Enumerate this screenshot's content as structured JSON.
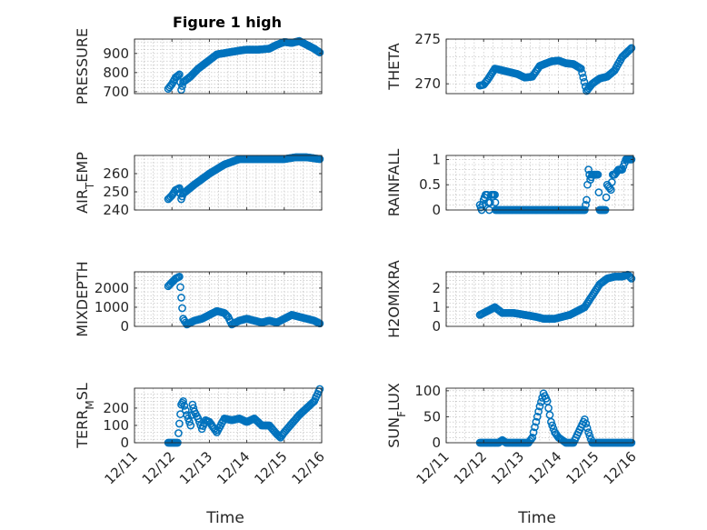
{
  "chart_data": {
    "type": "scatter",
    "title": "Figure 1 high",
    "marker_color": "#0072BD",
    "grid": true,
    "xlabel": "Time",
    "x_ticks": [
      "12/11",
      "12/12",
      "12/13",
      "12/14",
      "12/15",
      "12/16"
    ],
    "xlim": [
      0,
      5
    ],
    "panels": [
      {
        "name": "pressure",
        "ylabel": "PRESSURE",
        "ylim": [
          690,
          975
        ],
        "yticks": [
          700,
          800,
          900
        ],
        "yticklabels": [
          "700",
          "800",
          "900"
        ],
        "knots": [
          [
            0.9,
            715
          ],
          [
            1.0,
            740
          ],
          [
            1.1,
            775
          ],
          [
            1.2,
            790
          ],
          [
            1.25,
            710
          ],
          [
            1.3,
            750
          ],
          [
            1.5,
            780
          ],
          [
            1.7,
            820
          ],
          [
            2.0,
            865
          ],
          [
            2.2,
            895
          ],
          [
            2.5,
            905
          ],
          [
            2.8,
            915
          ],
          [
            3.0,
            920
          ],
          [
            3.3,
            920
          ],
          [
            3.6,
            925
          ],
          [
            3.8,
            945
          ],
          [
            4.0,
            960
          ],
          [
            4.2,
            955
          ],
          [
            4.4,
            965
          ],
          [
            4.6,
            945
          ],
          [
            4.8,
            925
          ],
          [
            4.95,
            905
          ]
        ]
      },
      {
        "name": "theta",
        "ylabel": "THETA",
        "ylim": [
          268.9,
          275
        ],
        "yticks": [
          270,
          275
        ],
        "yticklabels": [
          "270",
          "275"
        ],
        "knots": [
          [
            0.9,
            269.8
          ],
          [
            1.0,
            269.9
          ],
          [
            1.1,
            270.4
          ],
          [
            1.3,
            271.7
          ],
          [
            1.6,
            271.4
          ],
          [
            1.9,
            271.1
          ],
          [
            2.1,
            270.7
          ],
          [
            2.3,
            270.8
          ],
          [
            2.5,
            272.0
          ],
          [
            2.8,
            272.5
          ],
          [
            3.0,
            272.6
          ],
          [
            3.2,
            272.3
          ],
          [
            3.4,
            272.2
          ],
          [
            3.6,
            271.7
          ],
          [
            3.75,
            269.2
          ],
          [
            3.9,
            270.0
          ],
          [
            4.1,
            270.6
          ],
          [
            4.3,
            270.8
          ],
          [
            4.5,
            271.5
          ],
          [
            4.7,
            273.0
          ],
          [
            4.95,
            274.0
          ]
        ]
      },
      {
        "name": "air-temp",
        "ylabel": "AIR_TEMP",
        "ylim": [
          240,
          270
        ],
        "yticks": [
          240,
          250,
          260
        ],
        "yticklabels": [
          "240",
          "250",
          "260"
        ],
        "knots": [
          [
            0.9,
            246
          ],
          [
            1.0,
            248
          ],
          [
            1.1,
            251
          ],
          [
            1.2,
            252
          ],
          [
            1.25,
            246
          ],
          [
            1.3,
            249
          ],
          [
            1.6,
            254
          ],
          [
            2.0,
            260
          ],
          [
            2.4,
            265
          ],
          [
            2.8,
            268
          ],
          [
            3.2,
            268
          ],
          [
            3.6,
            268
          ],
          [
            4.0,
            268
          ],
          [
            4.3,
            269
          ],
          [
            4.6,
            269
          ],
          [
            4.95,
            268
          ]
        ]
      },
      {
        "name": "rainfall",
        "ylabel": "RAINFALL",
        "ylim": [
          0,
          1.08
        ],
        "yticks": [
          0,
          0.5,
          1
        ],
        "yticklabels": [
          "0",
          "0.5",
          "1"
        ],
        "knots": [
          [
            0.9,
            0.1
          ],
          [
            0.95,
            0
          ],
          [
            1.0,
            0.2
          ],
          [
            1.05,
            0.3
          ],
          [
            1.1,
            0.3
          ],
          [
            1.15,
            0
          ],
          [
            1.2,
            0.3
          ],
          [
            1.3,
            0.3
          ],
          [
            1.32,
            0
          ],
          [
            3.7,
            0
          ],
          [
            3.75,
            0.2
          ],
          [
            3.8,
            0.8
          ],
          [
            3.85,
            0.6
          ],
          [
            3.9,
            0.7
          ],
          [
            4.0,
            0.7
          ],
          [
            4.05,
            0.7
          ],
          [
            4.1,
            0
          ],
          [
            4.25,
            0
          ],
          [
            4.3,
            0.5
          ],
          [
            4.4,
            0.4
          ],
          [
            4.45,
            0.7
          ],
          [
            4.5,
            0.7
          ],
          [
            4.6,
            0.8
          ],
          [
            4.7,
            0.8
          ],
          [
            4.8,
            1.0
          ],
          [
            4.95,
            1.0
          ]
        ]
      },
      {
        "name": "mixdepth",
        "ylabel": "MIXDEPTH",
        "ylim": [
          0,
          2850
        ],
        "yticks": [
          0,
          1000,
          2000
        ],
        "yticklabels": [
          "0",
          "1000",
          "2000"
        ],
        "knots": [
          [
            0.9,
            2100
          ],
          [
            1.0,
            2300
          ],
          [
            1.1,
            2500
          ],
          [
            1.2,
            2600
          ],
          [
            1.25,
            1500
          ],
          [
            1.3,
            400
          ],
          [
            1.4,
            100
          ],
          [
            1.6,
            300
          ],
          [
            1.8,
            400
          ],
          [
            2.0,
            600
          ],
          [
            2.2,
            800
          ],
          [
            2.4,
            700
          ],
          [
            2.5,
            500
          ],
          [
            2.6,
            100
          ],
          [
            2.8,
            300
          ],
          [
            3.0,
            400
          ],
          [
            3.2,
            300
          ],
          [
            3.4,
            200
          ],
          [
            3.6,
            300
          ],
          [
            3.8,
            200
          ],
          [
            4.0,
            400
          ],
          [
            4.2,
            600
          ],
          [
            4.4,
            500
          ],
          [
            4.6,
            400
          ],
          [
            4.8,
            300
          ],
          [
            4.95,
            150
          ]
        ]
      },
      {
        "name": "h2omixra",
        "ylabel": "H2OMIXRA",
        "ylim": [
          0,
          2.85
        ],
        "yticks": [
          0,
          1,
          2
        ],
        "yticklabels": [
          "0",
          "1",
          "2"
        ],
        "knots": [
          [
            0.9,
            0.6
          ],
          [
            1.1,
            0.8
          ],
          [
            1.3,
            1.0
          ],
          [
            1.5,
            0.7
          ],
          [
            1.8,
            0.7
          ],
          [
            2.1,
            0.6
          ],
          [
            2.4,
            0.5
          ],
          [
            2.6,
            0.4
          ],
          [
            2.9,
            0.4
          ],
          [
            3.1,
            0.5
          ],
          [
            3.3,
            0.6
          ],
          [
            3.5,
            0.8
          ],
          [
            3.7,
            1.0
          ],
          [
            3.9,
            1.6
          ],
          [
            4.1,
            2.2
          ],
          [
            4.3,
            2.5
          ],
          [
            4.5,
            2.6
          ],
          [
            4.7,
            2.6
          ],
          [
            4.85,
            2.7
          ],
          [
            4.95,
            2.5
          ]
        ]
      },
      {
        "name": "terr-msl",
        "ylabel": "TERR_MSL",
        "ylim": [
          0,
          315
        ],
        "yticks": [
          0,
          100,
          200
        ],
        "yticklabels": [
          "0",
          "100",
          "200"
        ],
        "knots": [
          [
            0.9,
            0
          ],
          [
            1.15,
            0
          ],
          [
            1.2,
            110
          ],
          [
            1.25,
            220
          ],
          [
            1.3,
            240
          ],
          [
            1.4,
            160
          ],
          [
            1.5,
            100
          ],
          [
            1.55,
            220
          ],
          [
            1.6,
            180
          ],
          [
            1.7,
            140
          ],
          [
            1.8,
            80
          ],
          [
            1.9,
            130
          ],
          [
            2.0,
            120
          ],
          [
            2.2,
            60
          ],
          [
            2.4,
            140
          ],
          [
            2.6,
            130
          ],
          [
            2.8,
            140
          ],
          [
            3.0,
            120
          ],
          [
            3.2,
            140
          ],
          [
            3.4,
            100
          ],
          [
            3.6,
            100
          ],
          [
            3.8,
            50
          ],
          [
            3.9,
            30
          ],
          [
            4.0,
            60
          ],
          [
            4.2,
            110
          ],
          [
            4.4,
            160
          ],
          [
            4.6,
            200
          ],
          [
            4.8,
            240
          ],
          [
            4.95,
            310
          ]
        ]
      },
      {
        "name": "sunflux",
        "ylabel": "SUN_FLUX",
        "ylim": [
          0,
          105
        ],
        "yticks": [
          0,
          50,
          100
        ],
        "yticklabels": [
          "0",
          "50",
          "100"
        ],
        "knots": [
          [
            0.9,
            0
          ],
          [
            1.2,
            0
          ],
          [
            1.4,
            0
          ],
          [
            1.5,
            5
          ],
          [
            1.6,
            0
          ],
          [
            2.2,
            0
          ],
          [
            2.3,
            10
          ],
          [
            2.4,
            40
          ],
          [
            2.5,
            70
          ],
          [
            2.6,
            95
          ],
          [
            2.7,
            80
          ],
          [
            2.8,
            40
          ],
          [
            2.9,
            20
          ],
          [
            3.0,
            10
          ],
          [
            3.2,
            0
          ],
          [
            3.4,
            0
          ],
          [
            3.5,
            15
          ],
          [
            3.6,
            30
          ],
          [
            3.7,
            45
          ],
          [
            3.8,
            20
          ],
          [
            3.9,
            0
          ],
          [
            4.95,
            0
          ]
        ]
      }
    ]
  }
}
